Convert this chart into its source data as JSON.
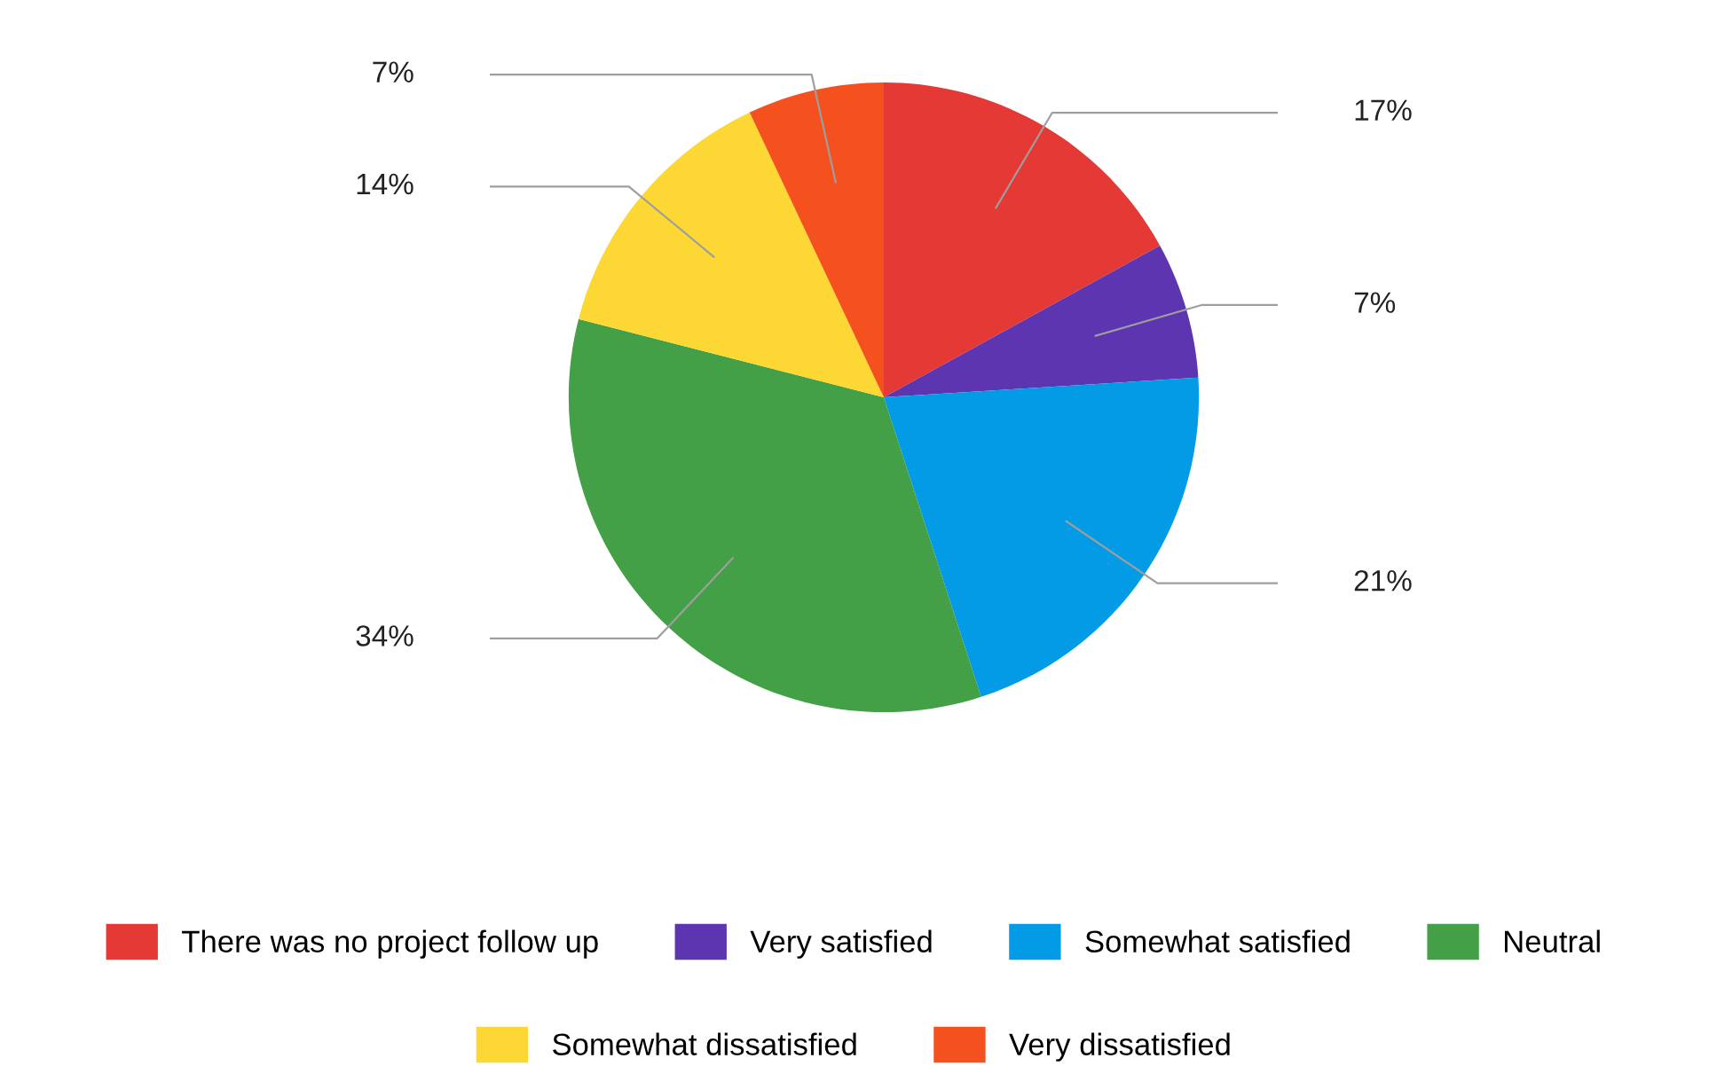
{
  "chart_data": {
    "type": "pie",
    "categories": [
      "There was no project follow up",
      "Very satisfied",
      "Somewhat satisfied",
      "Neutral",
      "Somewhat dissatisfied",
      "Very dissatisfied"
    ],
    "values": [
      17,
      7,
      21,
      34,
      14,
      7
    ],
    "colors": [
      "#e53935",
      "#5e35b1",
      "#039be5",
      "#43a047",
      "#fdd835",
      "#f4511e"
    ],
    "value_labels": [
      "17%",
      "7%",
      "21%",
      "34%",
      "14%",
      "7%"
    ],
    "legend": "bottom"
  }
}
